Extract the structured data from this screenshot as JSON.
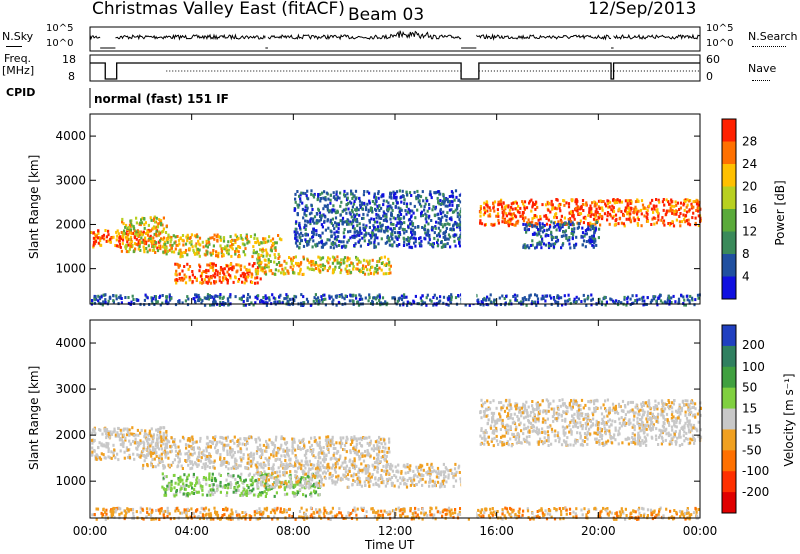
{
  "header": {
    "station": "Christmas Valley East (fitACF)",
    "beam": "Beam 03",
    "date": "12/Sep/2013"
  },
  "strips": {
    "nsky_label": "N.Sky",
    "nsky_ticks": [
      "10^5",
      "10^0"
    ],
    "nsearch_label": "N.Search",
    "freq_label": "Freq.",
    "freq_unit": "[MHz]",
    "freq_ticks": [
      "18",
      "8"
    ],
    "nave_ticks": [
      "60",
      "0"
    ],
    "nave_label": "Nave",
    "cpid_label": "CPID",
    "cpid_value": "normal (fast) 151 IF"
  },
  "chart_data": [
    {
      "type": "heatmap",
      "name_panel": "power",
      "ylabel": "Slant Range [km]",
      "y_ticks": [
        "1000",
        "2000",
        "3000",
        "4000"
      ],
      "ylim": [
        200,
        4500
      ],
      "colorbar_label": "Power [dB]",
      "colorbar_ticks": [
        "4",
        "8",
        "12",
        "16",
        "20",
        "24",
        "28"
      ],
      "colorbar_colors": [
        "#1010e0",
        "#2050a0",
        "#3a8a5a",
        "#5aaa3a",
        "#b8d020",
        "#ffc000",
        "#ff7000",
        "#ff2000"
      ],
      "bands": [
        {
          "t": [
            0.0,
            2.8
          ],
          "r": [
            1500,
            1900
          ],
          "level": "high"
        },
        {
          "t": [
            1.2,
            3.0
          ],
          "r": [
            1400,
            2200
          ],
          "level": "mid"
        },
        {
          "t": [
            2.8,
            7.5
          ],
          "r": [
            1300,
            1800
          ],
          "level": "mid"
        },
        {
          "t": [
            3.3,
            6.7
          ],
          "r": [
            700,
            1150
          ],
          "level": "high"
        },
        {
          "t": [
            6.5,
            11.8
          ],
          "r": [
            900,
            1300
          ],
          "level": "mid"
        },
        {
          "t": [
            8.0,
            14.8
          ],
          "r": [
            1500,
            2800
          ],
          "level": "low"
        },
        {
          "t": [
            15.3,
            24.0
          ],
          "r": [
            2000,
            2600
          ],
          "level": "high"
        },
        {
          "t": [
            17.0,
            20.0
          ],
          "r": [
            1500,
            2100
          ],
          "level": "low"
        },
        {
          "t": [
            0.0,
            24.0
          ],
          "r": [
            200,
            450
          ],
          "level": "low"
        }
      ]
    },
    {
      "type": "heatmap",
      "name_panel": "velocity",
      "ylabel": "Slant Range [km]",
      "y_ticks": [
        "1000",
        "2000",
        "3000",
        "4000"
      ],
      "ylim": [
        200,
        4500
      ],
      "colorbar_label": "Velocity [m s⁻¹]",
      "colorbar_ticks": [
        "200",
        "100",
        "50",
        "15",
        "-15",
        "-50",
        "-100",
        "-200"
      ],
      "colorbar_colors": [
        "#2040c0",
        "#308060",
        "#40a040",
        "#80d040",
        "#c8c8c8",
        "#f0a020",
        "#ff7000",
        "#ff3000",
        "#e00000"
      ],
      "bands": [
        {
          "t": [
            0.0,
            3.0
          ],
          "r": [
            1500,
            2200
          ],
          "level": "zero"
        },
        {
          "t": [
            2.0,
            11.8
          ],
          "r": [
            1300,
            2000
          ],
          "level": "zero"
        },
        {
          "t": [
            2.8,
            9.0
          ],
          "r": [
            700,
            1200
          ],
          "level": "pos"
        },
        {
          "t": [
            6.5,
            14.8
          ],
          "r": [
            900,
            1400
          ],
          "level": "zero"
        },
        {
          "t": [
            15.3,
            24.0
          ],
          "r": [
            1800,
            2800
          ],
          "level": "zero"
        },
        {
          "t": [
            0.0,
            24.0
          ],
          "r": [
            200,
            450
          ],
          "level": "neg"
        }
      ]
    }
  ],
  "x_axis": {
    "label": "Time UT",
    "ticks": [
      "00:00",
      "04:00",
      "08:00",
      "12:00",
      "16:00",
      "20:00",
      "00:00"
    ]
  }
}
